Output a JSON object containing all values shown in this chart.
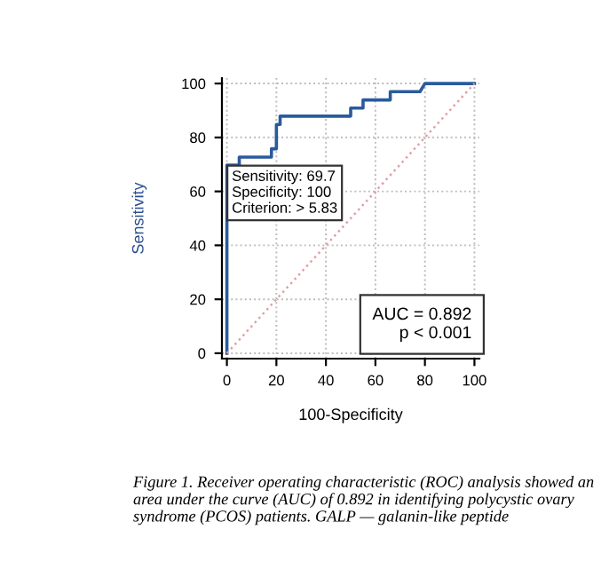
{
  "chart_data": {
    "type": "line",
    "xlabel": "100-Specificity",
    "ylabel": "Sensitivity",
    "series": [
      {
        "color": "#2a5b9c",
        "x": [
          0,
          0,
          5,
          5,
          18,
          18,
          20,
          20,
          21.5,
          21.5,
          50,
          50,
          55,
          55,
          66,
          66,
          78,
          80,
          100
        ],
        "values": [
          0,
          69.7,
          69.7,
          72.7,
          72.7,
          75.8,
          75.8,
          84.8,
          84.8,
          87.9,
          87.9,
          90.9,
          90.9,
          93.9,
          93.9,
          97,
          97,
          100,
          100
        ]
      },
      {
        "color": "#e0a0a8",
        "line_style": "dotted",
        "x": [
          0,
          100
        ],
        "values": [
          0,
          100
        ]
      }
    ],
    "xlim": [
      -2,
      102
    ],
    "ylim": [
      -2,
      102
    ],
    "xticks": [
      0,
      20,
      40,
      60,
      80,
      100
    ],
    "yticks": [
      0,
      20,
      40,
      60,
      80,
      100
    ],
    "grid": true,
    "marker": "none",
    "annotations": [
      {
        "text": "Sensitivity: 69.7\nSpecificity: 100\nCriterion: > 5.83",
        "x": 0,
        "y": 69.7
      },
      "AUC = 0.892\np < 0.001",
      "Figure 1. Receiver operating characteristic (ROC) analysis showed an area under the curve (AUC) of 0.892 in identifying polycystic ovary syndrome (PCOS) patients. GALP — galanin-like peptide"
    ]
  }
}
